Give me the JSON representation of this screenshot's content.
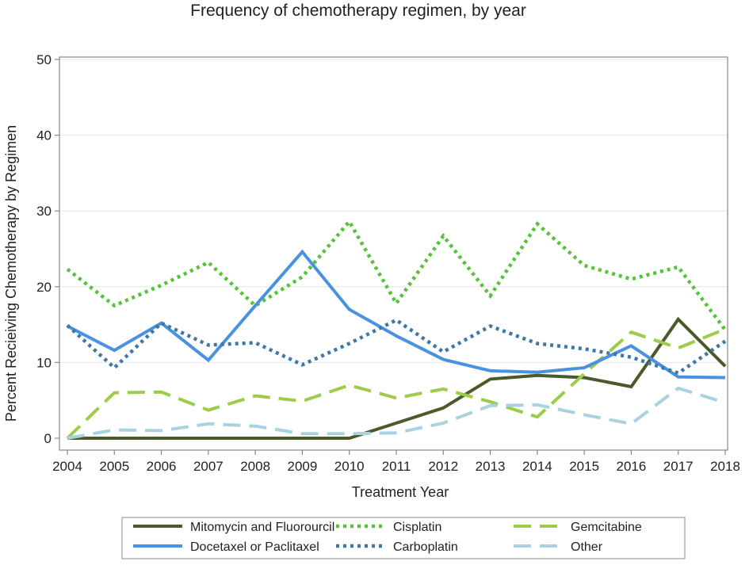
{
  "chart_data": {
    "type": "line",
    "title": "Frequency of chemotherapy regimen, by year",
    "xlabel": "Treatment Year",
    "ylabel": "Percent Recieiving Chemotherapy by Regimen",
    "x": [
      "2004",
      "2005",
      "2006",
      "2007",
      "2008",
      "2009",
      "2010",
      "2011",
      "2012",
      "2013",
      "2014",
      "2015",
      "2016",
      "2017",
      "2018"
    ],
    "xlim": [
      2004,
      2018
    ],
    "ylim": [
      0,
      50
    ],
    "yticks": [
      "0",
      "10",
      "20",
      "30",
      "40",
      "50"
    ],
    "grid": true,
    "legend_position": "bottom",
    "series": [
      {
        "name": "Mitomycin and Fluorourcil",
        "color": "#4a5a2a",
        "style": "solid",
        "values": [
          0,
          0,
          0,
          0,
          0,
          0,
          0,
          2.0,
          4.0,
          7.8,
          8.3,
          8.0,
          6.8,
          15.7,
          9.5
        ]
      },
      {
        "name": "Cisplatin",
        "color": "#55c43a",
        "style": "dotted",
        "values": [
          22.3,
          17.5,
          20.2,
          23.2,
          17.5,
          21.3,
          28.6,
          17.8,
          26.7,
          18.8,
          28.3,
          22.8,
          21.0,
          22.6,
          14.3
        ]
      },
      {
        "name": "Gemcitabine",
        "color": "#9ccc49",
        "style": "dashed",
        "values": [
          0,
          6.0,
          6.1,
          3.7,
          5.6,
          4.9,
          7.0,
          5.3,
          6.5,
          4.8,
          2.8,
          8.5,
          14.0,
          11.9,
          14.4
        ]
      },
      {
        "name": "Docetaxel or Paclitaxel",
        "color": "#4a92e0",
        "style": "solid",
        "values": [
          14.8,
          11.6,
          15.2,
          10.3,
          17.5,
          24.6,
          17.0,
          13.5,
          10.4,
          8.9,
          8.7,
          9.3,
          12.2,
          8.1,
          8.0
        ]
      },
      {
        "name": "Carboplatin",
        "color": "#3e78a8",
        "style": "dotted",
        "values": [
          14.9,
          9.3,
          15.2,
          12.3,
          12.6,
          9.7,
          12.5,
          15.6,
          11.4,
          14.8,
          12.5,
          11.8,
          10.7,
          8.6,
          12.8
        ]
      },
      {
        "name": "Other",
        "color": "#a9d2e0",
        "style": "dashed",
        "values": [
          0,
          1.1,
          1.0,
          1.9,
          1.6,
          0.6,
          0.6,
          0.7,
          2.0,
          4.3,
          4.4,
          3.1,
          1.9,
          6.6,
          4.7
        ]
      }
    ],
    "legend_layout": [
      [
        "Mitomycin and Fluorourcil",
        "Cisplatin",
        "Gemcitabine"
      ],
      [
        "Docetaxel or Paclitaxel",
        "Carboplatin",
        "Other"
      ]
    ]
  }
}
